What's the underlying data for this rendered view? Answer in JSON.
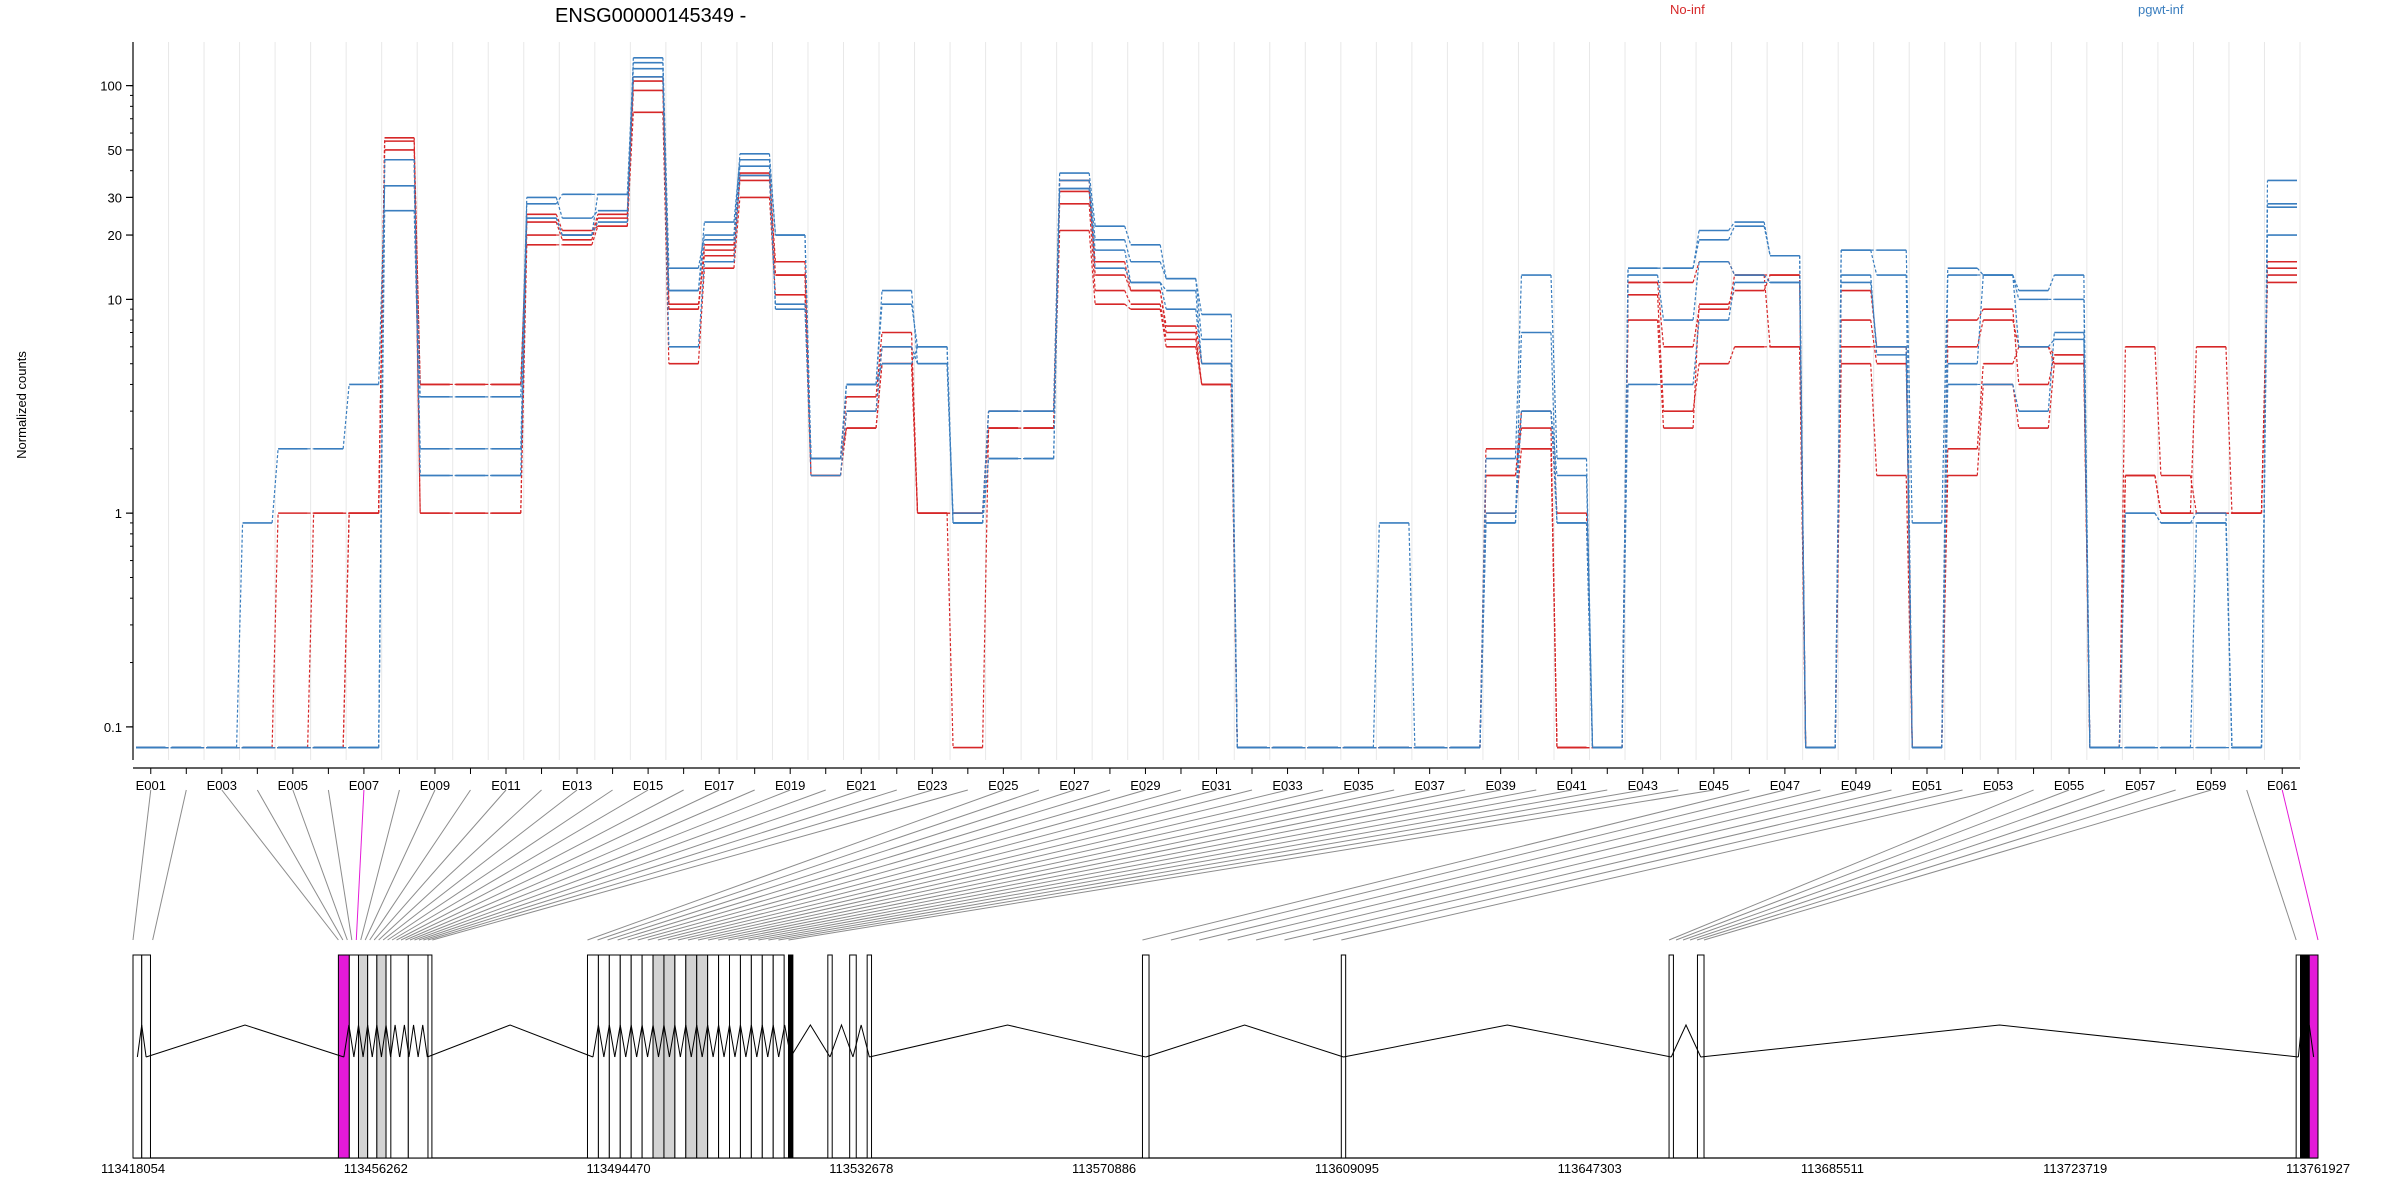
{
  "title": "ENSG00000145349 -",
  "legend": [
    {
      "label": "No-inf",
      "color": "#d62728"
    },
    {
      "label": "pgwt-inf",
      "color": "#3a7ebf"
    }
  ],
  "colors": {
    "red": "#d62728",
    "blue": "#3a7ebf",
    "highlight": "#e41ad8",
    "exon_fill": "#d3d3d3"
  },
  "chart_data": {
    "type": "line",
    "title": "ENSG00000145349 -",
    "ylabel": "Normalized counts",
    "yscale": "log",
    "ylim": [
      0.07,
      160
    ],
    "yticks": [
      "100",
      "50",
      "30",
      "20",
      "10",
      "1",
      "0.1"
    ],
    "ytick_values": [
      100,
      50,
      30,
      20,
      10,
      1,
      0.1
    ],
    "categories": [
      "E001",
      "E002",
      "E003",
      "E004",
      "E005",
      "E006",
      "E007",
      "E008",
      "E009",
      "E010",
      "E011",
      "E012",
      "E013",
      "E014",
      "E015",
      "E016",
      "E017",
      "E018",
      "E019",
      "E020",
      "E021",
      "E022",
      "E023",
      "E024",
      "E025",
      "E026",
      "E027",
      "E028",
      "E029",
      "E030",
      "E031",
      "E032",
      "E033",
      "E034",
      "E035",
      "E036",
      "E037",
      "E038",
      "E039",
      "E040",
      "E041",
      "E042",
      "E043",
      "E044",
      "E045",
      "E046",
      "E047",
      "E048",
      "E049",
      "E050",
      "E051",
      "E052",
      "E053",
      "E054",
      "E055",
      "E056",
      "E057",
      "E058",
      "E059",
      "E060",
      "E061"
    ],
    "xticklabels_shown": [
      "E001",
      "E003",
      "E005",
      "E007",
      "E009",
      "E011",
      "E013",
      "E015",
      "E017",
      "E019",
      "E021",
      "E023",
      "E025",
      "E027",
      "E029",
      "E031",
      "E033",
      "E035",
      "E037",
      "E039",
      "E041",
      "E043",
      "E045",
      "E047",
      "E049",
      "E051",
      "E053",
      "E055",
      "E057",
      "E059",
      "E061"
    ],
    "zero_floor": 0.08,
    "series": [
      {
        "name": "No-inf",
        "color": "#d62728",
        "values": [
          0.08,
          0.08,
          0.08,
          0.08,
          1,
          1,
          1,
          50,
          4,
          4,
          4,
          20,
          20,
          25,
          105,
          9,
          17,
          36,
          13,
          1.8,
          3.5,
          7,
          1,
          1,
          3,
          3,
          36,
          13,
          11,
          7.5,
          5,
          0.08,
          0.08,
          0.08,
          0.08,
          0.08,
          0.08,
          0.08,
          1.5,
          3,
          1,
          0.08,
          12,
          6,
          9,
          13,
          13,
          0.08,
          8,
          5,
          0.08,
          6,
          8,
          6,
          5,
          0.08,
          6,
          1.5,
          1,
          1,
          14
        ]
      },
      {
        "name": "No-inf",
        "color": "#d62728",
        "values": [
          0.08,
          0.08,
          0.08,
          0.08,
          0.08,
          1,
          1,
          57,
          1,
          1,
          1,
          18,
          18,
          22,
          75,
          5,
          14,
          30,
          10.5,
          1.5,
          2.5,
          5,
          1,
          0.08,
          2.5,
          2.5,
          21,
          9.5,
          9,
          6,
          4,
          0.08,
          0.08,
          0.08,
          0.08,
          0.08,
          0.08,
          0.08,
          1,
          2,
          0.08,
          0.08,
          10.5,
          3,
          5,
          6,
          6,
          0.08,
          5,
          1.5,
          0.08,
          1.5,
          4,
          2.5,
          5,
          0.08,
          1.5,
          1,
          6,
          1,
          12
        ]
      },
      {
        "name": "No-inf",
        "color": "#d62728",
        "values": [
          0.08,
          0.08,
          0.08,
          0.08,
          0.08,
          0.08,
          1,
          45,
          1,
          1,
          1,
          25,
          21,
          22,
          95,
          9.5,
          16,
          39,
          15,
          1.5,
          3,
          6,
          1,
          1,
          2.5,
          2.5,
          28,
          11,
          9.5,
          6.5,
          4,
          0.08,
          0.08,
          0.08,
          0.08,
          0.08,
          0.08,
          0.08,
          1.5,
          2.5,
          0.08,
          0.08,
          8,
          2.5,
          9.5,
          11,
          13,
          0.08,
          11,
          6,
          0.08,
          8,
          9,
          4,
          5.5,
          0.08,
          1.5,
          1,
          1,
          1,
          13
        ]
      },
      {
        "name": "No-inf",
        "color": "#d62728",
        "values": [
          0.08,
          0.08,
          0.08,
          0.08,
          0.08,
          0.08,
          1,
          55,
          4,
          4,
          4,
          23,
          19,
          24,
          110,
          9,
          18,
          38,
          13,
          1.8,
          2.5,
          5,
          1,
          1,
          2.5,
          2.5,
          32,
          15,
          11,
          7,
          4,
          0.08,
          0.08,
          0.08,
          0.08,
          0.08,
          0.08,
          0.08,
          2,
          2,
          0.08,
          0.08,
          12,
          12,
          15,
          13,
          6,
          0.08,
          6,
          6,
          0.08,
          2,
          5,
          6,
          5.5,
          0.08,
          1.5,
          1,
          1,
          1,
          15
        ]
      },
      {
        "name": "pgwt-inf",
        "color": "#3a7ebf",
        "values": [
          0.08,
          0.08,
          0.08,
          0.9,
          2,
          2,
          4,
          34,
          3.5,
          3.5,
          3.5,
          28,
          31,
          31,
          128,
          11,
          23,
          45,
          20,
          1.8,
          4,
          9.5,
          6,
          0.9,
          3,
          3,
          36,
          19,
          15,
          12.5,
          6.5,
          0.08,
          0.08,
          0.08,
          0.08,
          0.9,
          0.08,
          0.08,
          1,
          3,
          1.5,
          0.08,
          14,
          14,
          19,
          22,
          16,
          0.08,
          17,
          13,
          0.08,
          13,
          13,
          11,
          13,
          0.08,
          1,
          0.9,
          1,
          0.08,
          20
        ]
      },
      {
        "name": "pgwt-inf",
        "color": "#3a7ebf",
        "values": [
          0.08,
          0.08,
          0.08,
          0.08,
          0.08,
          0.08,
          0.08,
          26,
          2,
          2,
          2,
          30,
          24,
          26,
          135,
          14,
          20,
          48,
          20,
          1.8,
          4,
          11,
          5,
          1,
          3,
          3,
          39,
          22,
          18,
          12.5,
          8.5,
          0.08,
          0.08,
          0.08,
          0.08,
          0.08,
          0.08,
          0.08,
          1.8,
          13,
          1.8,
          0.08,
          14,
          14,
          21,
          23,
          16,
          0.08,
          17,
          17,
          0.9,
          14,
          13,
          10,
          10,
          0.08,
          1,
          0.9,
          0.9,
          0.08,
          36
        ]
      },
      {
        "name": "pgwt-inf",
        "color": "#3a7ebf",
        "values": [
          0.08,
          0.08,
          0.08,
          0.08,
          0.08,
          0.08,
          0.08,
          45,
          1.5,
          1.5,
          1.5,
          24,
          20,
          31,
          120,
          11,
          19,
          42,
          9,
          1.8,
          4,
          5,
          6,
          0.9,
          1.8,
          1.8,
          33,
          17,
          12,
          11,
          5,
          0.08,
          0.08,
          0.08,
          0.08,
          0.08,
          0.08,
          0.08,
          0.9,
          7,
          0.9,
          0.08,
          13,
          8,
          15,
          13,
          12,
          0.08,
          13,
          5.5,
          0.08,
          5,
          13,
          6,
          6.5,
          0.08,
          0.08,
          0.08,
          0.9,
          0.08,
          28
        ]
      },
      {
        "name": "pgwt-inf",
        "color": "#3a7ebf",
        "values": [
          0.08,
          0.08,
          0.08,
          0.08,
          0.08,
          0.08,
          0.08,
          45,
          1.5,
          1.5,
          1.5,
          24,
          20,
          23,
          110,
          6,
          15,
          38,
          9.5,
          1.5,
          3,
          6,
          5,
          0.9,
          1.8,
          1.8,
          33,
          14,
          12,
          9,
          5,
          0.08,
          0.08,
          0.08,
          0.08,
          0.08,
          0.08,
          0.08,
          0.9,
          3,
          0.9,
          0.08,
          4,
          4,
          8,
          12,
          12,
          0.08,
          12,
          6,
          0.08,
          4,
          4,
          3,
          7,
          0.08,
          0.08,
          0.08,
          0.08,
          0.08,
          27
        ]
      }
    ]
  },
  "exon_links": {
    "alignment": [
      0,
      0,
      1,
      1,
      1,
      1,
      1,
      1,
      1,
      1,
      1,
      1,
      1,
      1,
      1,
      1,
      1,
      1,
      1,
      1,
      1,
      1,
      1,
      1,
      2,
      2,
      2,
      2,
      2,
      2,
      2,
      2,
      2,
      2,
      2,
      2,
      2,
      2,
      2,
      2,
      2,
      2,
      2,
      2,
      2,
      3,
      3,
      3,
      3,
      3,
      3,
      3,
      3,
      4,
      4,
      4,
      4,
      4,
      4,
      5,
      5
    ],
    "highlighted_exons": [
      "E007",
      "E061"
    ]
  },
  "gene_model": {
    "coordinate_ticks": [
      "113418054",
      "113456262",
      "113494470",
      "113532678",
      "113570886",
      "113609095",
      "113647303",
      "113685511",
      "113723719",
      "113761927"
    ],
    "genomic_min": 113418054,
    "genomic_max": 113761927
  }
}
